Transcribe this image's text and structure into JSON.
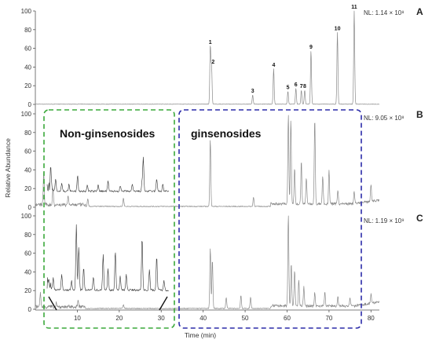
{
  "chart_data": {
    "type": "line",
    "xlabel": "Time (min)",
    "ylabel": "Relative Abundance",
    "xlim": [
      0,
      82
    ],
    "x_ticks": [
      10,
      20,
      30,
      40,
      50,
      60,
      70,
      80
    ],
    "ylim": [
      0,
      100
    ],
    "y_ticks": [
      0,
      20,
      40,
      60,
      80,
      100
    ],
    "panels": [
      {
        "label": "A",
        "nl": "NL: 1.14 × 10⁸",
        "peaks": [
          {
            "label": "1",
            "x": 41.7,
            "y": 62
          },
          {
            "label": "2",
            "x": 42.0,
            "y": 41
          },
          {
            "label": "3",
            "x": 51.8,
            "y": 10
          },
          {
            "label": "4",
            "x": 56.8,
            "y": 38
          },
          {
            "label": "5",
            "x": 60.2,
            "y": 14
          },
          {
            "label": "6",
            "x": 62.1,
            "y": 17
          },
          {
            "label": "7",
            "x": 63.4,
            "y": 15
          },
          {
            "label": "8",
            "x": 64.2,
            "y": 15
          },
          {
            "label": "9",
            "x": 65.7,
            "y": 57
          },
          {
            "label": "10",
            "x": 72.0,
            "y": 77
          },
          {
            "label": "11",
            "x": 76.0,
            "y": 100
          }
        ]
      },
      {
        "label": "B",
        "nl": "NL: 9.05 × 10⁸",
        "peaks": [
          {
            "x": 2.0,
            "y": 35
          },
          {
            "x": 4.2,
            "y": 18
          },
          {
            "x": 7.8,
            "y": 10
          },
          {
            "x": 12.5,
            "y": 8
          },
          {
            "x": 21.0,
            "y": 9
          },
          {
            "x": 41.7,
            "y": 72
          },
          {
            "x": 52.0,
            "y": 10
          },
          {
            "x": 60.3,
            "y": 95
          },
          {
            "x": 60.9,
            "y": 90
          },
          {
            "x": 61.8,
            "y": 38
          },
          {
            "x": 63.4,
            "y": 45
          },
          {
            "x": 64.6,
            "y": 28
          },
          {
            "x": 66.6,
            "y": 92
          },
          {
            "x": 68.5,
            "y": 30
          },
          {
            "x": 70.0,
            "y": 35
          },
          {
            "x": 72.1,
            "y": 15
          },
          {
            "x": 76.0,
            "y": 14
          },
          {
            "x": 80.0,
            "y": 18
          }
        ]
      },
      {
        "label": "C",
        "nl": "NL: 1.19 × 10⁹",
        "peaks": [
          {
            "x": 1.2,
            "y": 15
          },
          {
            "x": 5.0,
            "y": 5
          },
          {
            "x": 10.2,
            "y": 6
          },
          {
            "x": 21.0,
            "y": 4
          },
          {
            "x": 41.7,
            "y": 65
          },
          {
            "x": 42.2,
            "y": 52
          },
          {
            "x": 45.5,
            "y": 12
          },
          {
            "x": 49.0,
            "y": 14
          },
          {
            "x": 51.3,
            "y": 12
          },
          {
            "x": 60.3,
            "y": 98
          },
          {
            "x": 61.0,
            "y": 45
          },
          {
            "x": 61.8,
            "y": 38
          },
          {
            "x": 62.8,
            "y": 28
          },
          {
            "x": 64.0,
            "y": 20
          },
          {
            "x": 66.6,
            "y": 14
          },
          {
            "x": 69.0,
            "y": 14
          },
          {
            "x": 72.1,
            "y": 10
          },
          {
            "x": 75.0,
            "y": 8
          },
          {
            "x": 80.0,
            "y": 10
          }
        ]
      }
    ],
    "annotations": {
      "box_left": "Non-ginsenosides",
      "box_right": "ginsenosides"
    }
  }
}
